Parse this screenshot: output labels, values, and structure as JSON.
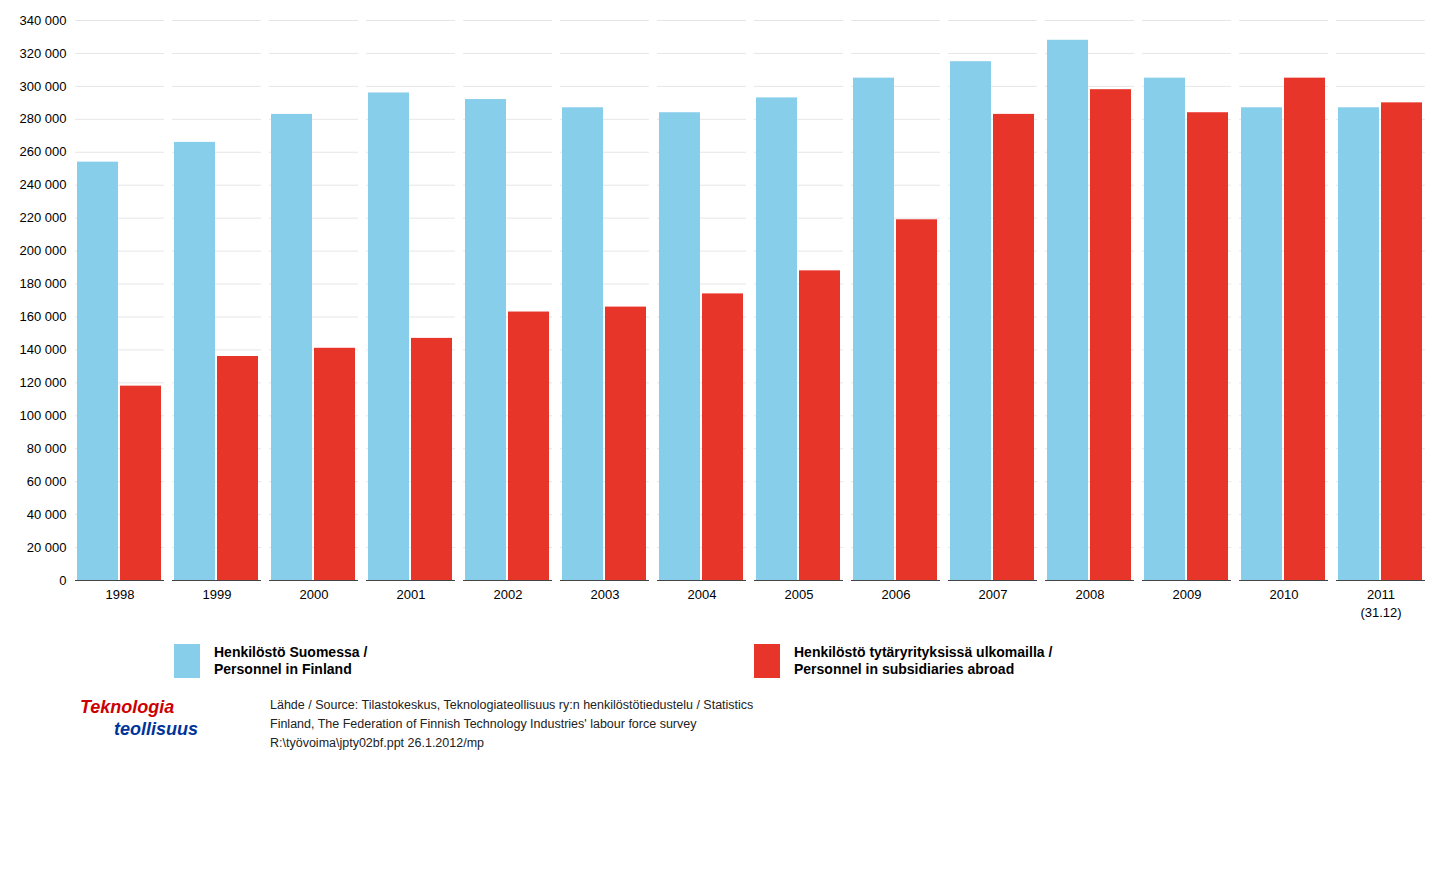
{
  "chart_data": {
    "type": "bar",
    "categories": [
      "1998",
      "1999",
      "2000",
      "2001",
      "2002",
      "2003",
      "2004",
      "2005",
      "2006",
      "2007",
      "2008",
      "2009",
      "2010",
      "2011"
    ],
    "series": [
      {
        "name": "Henkilöstö Suomessa /\nPersonnel in Finland",
        "color": "#87CEEB",
        "values": [
          254000,
          266000,
          283000,
          296000,
          292000,
          287000,
          284000,
          293000,
          305000,
          315000,
          328000,
          305000,
          287000,
          287000
        ]
      },
      {
        "name": "Henkilöstö tytäryrityksissä ulkomailla /\nPersonnel in subsidiaries abroad",
        "color": "#E8352A",
        "values": [
          118000,
          136000,
          141000,
          147000,
          163000,
          166000,
          174000,
          188000,
          219000,
          283000,
          298000,
          284000,
          305000,
          290000
        ]
      }
    ],
    "ylim": [
      0,
      340000
    ],
    "yticks": [
      0,
      {
        "value": 20000,
        "label": "20 000"
      },
      {
        "value": 40000,
        "label": "40 000"
      },
      {
        "value": 60000,
        "label": "60 000"
      },
      {
        "value": 80000,
        "label": "80 000"
      },
      {
        "value": 100000,
        "label": "100 000"
      },
      {
        "value": 120000,
        "label": "120 000"
      },
      {
        "value": 140000,
        "label": "140 000"
      },
      {
        "value": 160000,
        "label": "160 000"
      },
      {
        "value": 180000,
        "label": "180 000"
      },
      {
        "value": 200000,
        "label": "200 000"
      },
      {
        "value": 220000,
        "label": "220 000"
      },
      {
        "value": 240000,
        "label": "240 000"
      },
      {
        "value": 260000,
        "label": "260 000"
      },
      {
        "value": 280000,
        "label": "280 000"
      },
      {
        "value": 300000,
        "label": "300 000"
      },
      {
        "value": 320000,
        "label": "320 000"
      },
      {
        "value": 340000,
        "label": "340 000"
      }
    ],
    "grid": true,
    "legend": "bottom",
    "annotations": [
      {
        "text": "(31.12)",
        "x": "2011"
      },
      {
        "text": "Teknologia"
      },
      {
        "text": "teollisuus"
      },
      {
        "text": "Lähde / Source: Tilastokeskus, Teknologiateollisuus ry:n henkilöstötiedustelu / Statistics\nFinland, The Federation of Finnish Technology Industries' labour force survey\nR:\\työvoima\\jpty02bf.ppt    26.1.2012/mp"
      }
    ]
  }
}
